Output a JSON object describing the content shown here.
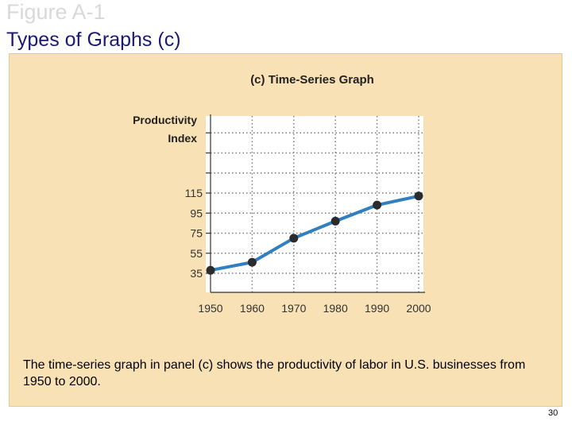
{
  "slide": {
    "figure_label": "Figure A-1",
    "title": "Types of Graphs (c)",
    "caption": "The time-series graph in panel (c) shows the productivity of labor in U.S. businesses from 1950 to 2000.",
    "page_number": "30"
  },
  "chart_data": {
    "type": "line",
    "title": "(c) Time-Series Graph",
    "ylabel_lines": [
      "Productivity",
      "Index"
    ],
    "xlabel": "",
    "x": [
      1950,
      1960,
      1970,
      1980,
      1990,
      2000
    ],
    "series": [
      {
        "values": [
          38,
          46,
          70,
          87,
          103,
          112
        ]
      }
    ],
    "xlim": [
      1950,
      2000
    ],
    "y_ticks": [
      35,
      55,
      75,
      95,
      115
    ],
    "ylim": [
      35,
      115
    ],
    "grid": true,
    "colors": {
      "line": "#2f7fc1",
      "marker": "#2b2b2b",
      "grid": "#7a7a7a"
    }
  }
}
